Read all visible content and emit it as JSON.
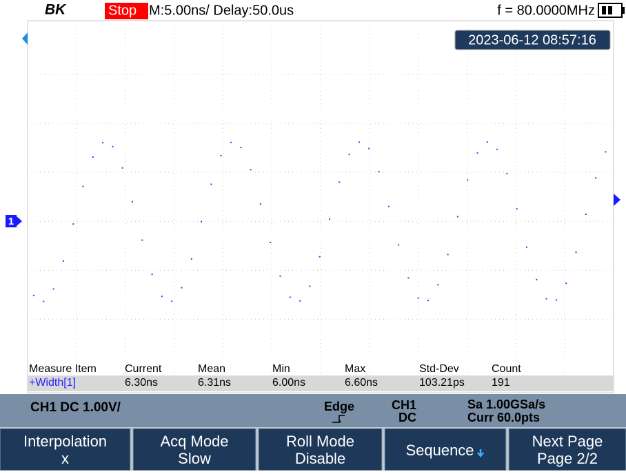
{
  "header": {
    "logo": "BK",
    "status": "Stop",
    "timebase": "M:5.00ns/ Delay:50.0us",
    "frequency": "f = 80.0000MHz"
  },
  "timestamp": "2023-06-12 08:57:16",
  "channel_marker": "1",
  "measure": {
    "headers": [
      "Measure Item",
      "Current",
      "Mean",
      "Min",
      "Max",
      "Std-Dev",
      "Count"
    ],
    "rows": [
      [
        "+Width[1]",
        "6.30ns",
        "6.31ns",
        "6.00ns",
        "6.60ns",
        "103.21ps",
        "191"
      ]
    ]
  },
  "status_bar": {
    "channel": "CH1 DC 1.00V/",
    "trigger": "Edge",
    "trigger_source": "CH1",
    "coupling": "DC",
    "sample_rate": "Sa 1.00GSa/s",
    "memory": "Curr 60.0pts"
  },
  "softkeys": [
    {
      "label": "Interpolation",
      "value": "x"
    },
    {
      "label": "Acq Mode",
      "value": "Slow"
    },
    {
      "label": "Roll Mode",
      "value": "Disable"
    },
    {
      "label": "Sequence"
    },
    {
      "label": "Next Page",
      "value": "Page 2/2"
    }
  ]
}
